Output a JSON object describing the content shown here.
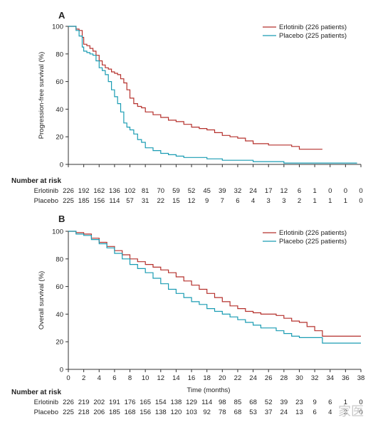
{
  "chart_data": [
    {
      "type": "line",
      "panel_label": "A",
      "xlabel": "",
      "ylabel": "Progression-free survival (%)",
      "xlim": [
        0,
        38
      ],
      "ylim": [
        0,
        100
      ],
      "y_ticks": [
        0,
        20,
        40,
        60,
        80,
        100
      ],
      "legend_position": "top-right",
      "series": [
        {
          "name": "Erlotinib (226 patients)",
          "color": "#b5302c",
          "x": [
            0,
            0.8,
            1,
            1.4,
            1.8,
            2,
            2.4,
            2.8,
            3.2,
            3.6,
            4,
            4.4,
            4.8,
            5.2,
            5.6,
            6,
            6.4,
            6.8,
            7.2,
            7.6,
            8,
            8.5,
            9,
            9.5,
            10,
            11,
            12,
            13,
            14,
            15,
            16,
            17,
            18,
            19,
            20,
            21,
            22,
            23,
            24,
            25,
            26,
            27,
            28,
            29,
            30,
            31,
            32,
            33
          ],
          "y": [
            100,
            100,
            98,
            97,
            92,
            87,
            86,
            84,
            82,
            79,
            75,
            72,
            70,
            69,
            67,
            66,
            65,
            62,
            59,
            54,
            48,
            44,
            42,
            41,
            38,
            36,
            34,
            32,
            31,
            29,
            27,
            26,
            25,
            23,
            21,
            20,
            19,
            17,
            15,
            15,
            14,
            14,
            14,
            13,
            11,
            11,
            11,
            11
          ]
        },
        {
          "name": "Placebo (225 patients)",
          "color": "#1a9cb3",
          "x": [
            0,
            0.8,
            1,
            1.4,
            1.8,
            2,
            2.4,
            2.8,
            3.2,
            3.6,
            4,
            4.4,
            4.8,
            5.2,
            5.6,
            6,
            6.4,
            6.8,
            7.2,
            7.6,
            8,
            8.5,
            9,
            9.5,
            10,
            11,
            12,
            13,
            14,
            15,
            16,
            18,
            20,
            22,
            24,
            26,
            28,
            30,
            32,
            34,
            36,
            37.5
          ],
          "y": [
            100,
            100,
            97,
            93,
            85,
            82,
            81,
            80,
            79,
            75,
            70,
            68,
            65,
            60,
            54,
            49,
            44,
            38,
            30,
            27,
            25,
            22,
            18,
            16,
            12,
            10,
            8,
            7,
            6,
            5,
            5,
            4,
            3,
            3,
            2,
            2,
            1,
            1,
            1,
            1,
            1,
            1
          ]
        }
      ],
      "risk_table": {
        "heading": "Number at risk",
        "rows": [
          {
            "label": "Erlotinib",
            "values": [
              "226",
              "192",
              "162",
              "136",
              "102",
              "81",
              "70",
              "59",
              "52",
              "45",
              "39",
              "32",
              "24",
              "17",
              "12",
              "6",
              "1",
              "0",
              "0",
              "0"
            ]
          },
          {
            "label": "Placebo",
            "values": [
              "225",
              "185",
              "156",
              "114",
              "57",
              "31",
              "22",
              "15",
              "12",
              "9",
              "7",
              "6",
              "4",
              "3",
              "3",
              "2",
              "1",
              "1",
              "1",
              "0"
            ]
          }
        ]
      }
    },
    {
      "type": "line",
      "panel_label": "B",
      "xlabel": "Time (months)",
      "ylabel": "Overall survival (%)",
      "xlim": [
        0,
        38
      ],
      "ylim": [
        0,
        100
      ],
      "x_ticks": [
        0,
        2,
        4,
        6,
        8,
        10,
        12,
        14,
        16,
        18,
        20,
        22,
        24,
        26,
        28,
        30,
        32,
        34,
        36,
        38
      ],
      "y_ticks": [
        0,
        20,
        40,
        60,
        80,
        100
      ],
      "legend_position": "top-right",
      "series": [
        {
          "name": "Erlotinib (226 patients)",
          "color": "#b5302c",
          "x": [
            0,
            1,
            2,
            3,
            4,
            5,
            6,
            7,
            8,
            9,
            10,
            11,
            12,
            13,
            14,
            15,
            16,
            17,
            18,
            19,
            20,
            21,
            22,
            23,
            24,
            25,
            26,
            27,
            28,
            29,
            30,
            31,
            32,
            33,
            34,
            35,
            36,
            37,
            38
          ],
          "y": [
            100,
            99,
            98,
            95,
            92,
            89,
            86,
            83,
            80,
            78,
            76,
            74,
            72,
            70,
            67,
            64,
            61,
            58,
            55,
            52,
            49,
            46,
            44,
            42,
            41,
            40,
            40,
            39,
            37,
            35,
            34,
            31,
            28,
            24,
            24,
            24,
            24,
            24,
            24
          ]
        },
        {
          "name": "Placebo (225 patients)",
          "color": "#1a9cb3",
          "x": [
            0,
            1,
            2,
            3,
            4,
            5,
            6,
            7,
            8,
            9,
            10,
            11,
            12,
            13,
            14,
            15,
            16,
            17,
            18,
            19,
            20,
            21,
            22,
            23,
            24,
            25,
            26,
            27,
            28,
            29,
            30,
            31,
            32,
            33,
            34,
            35,
            36,
            37,
            38
          ],
          "y": [
            100,
            98,
            97,
            94,
            91,
            88,
            84,
            80,
            76,
            73,
            70,
            66,
            62,
            58,
            55,
            52,
            49,
            47,
            44,
            42,
            40,
            38,
            36,
            34,
            32,
            30,
            30,
            28,
            26,
            24,
            23,
            23,
            23,
            19,
            19,
            19,
            19,
            19,
            19
          ]
        }
      ],
      "risk_table": {
        "heading": "Number at risk",
        "rows": [
          {
            "label": "Erlotinib",
            "values": [
              "226",
              "219",
              "202",
              "191",
              "176",
              "165",
              "154",
              "138",
              "129",
              "114",
              "98",
              "85",
              "68",
              "52",
              "39",
              "23",
              "9",
              "6",
              "1",
              "0"
            ]
          },
          {
            "label": "Placebo",
            "values": [
              "225",
              "218",
              "206",
              "185",
              "168",
              "156",
              "138",
              "120",
              "103",
              "92",
              "78",
              "68",
              "53",
              "37",
              "24",
              "13",
              "6",
              "4",
              "2",
              "0"
            ]
          }
        ]
      }
    }
  ],
  "watermark": "家医"
}
